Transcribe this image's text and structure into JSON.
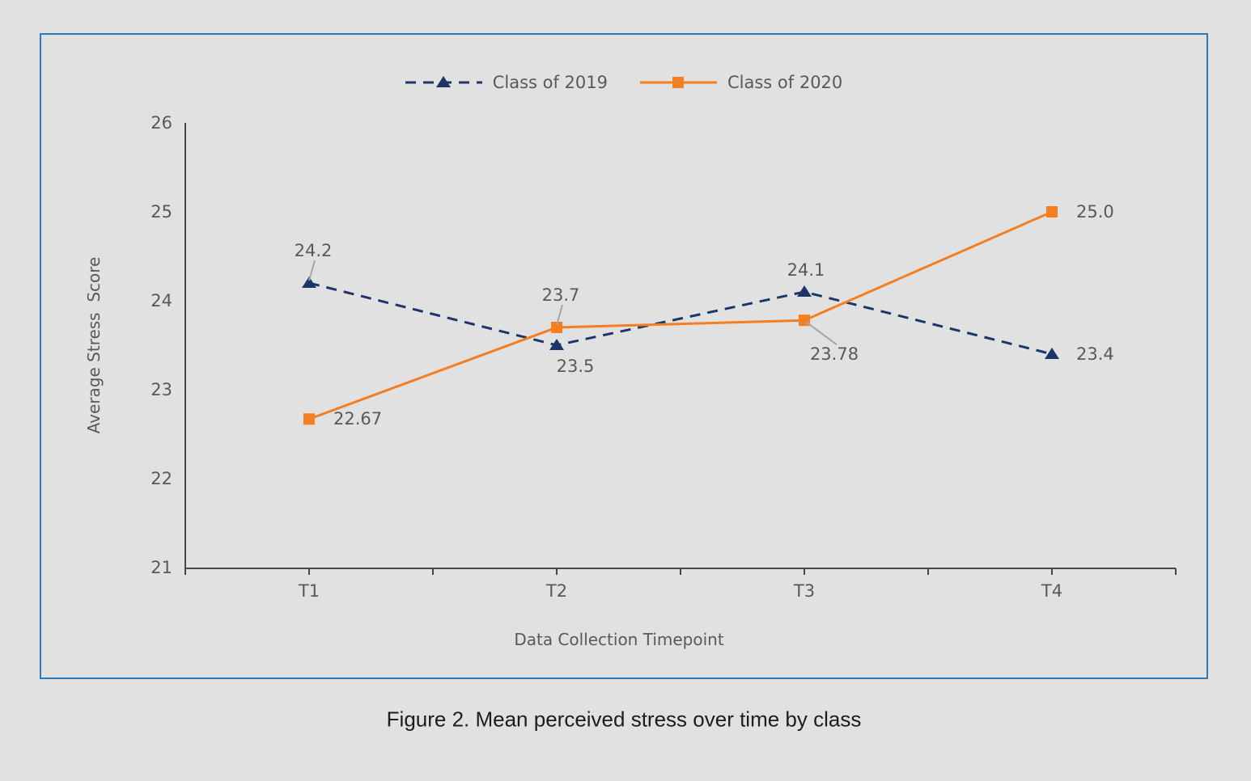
{
  "figure": {
    "caption": "Figure 2. Mean perceived stress over time by class"
  },
  "colors": {
    "background": "#e1e1e1",
    "panel_border": "#2e79b8",
    "axis": "#464646",
    "text_gray": "#595959",
    "leader": "#a6a6a6",
    "caption_text": "#1d1d1d",
    "series_2019": "#1d3667",
    "series_2020": "#f57e20"
  },
  "chart_data": {
    "type": "line",
    "title": "",
    "xlabel": "Data Collection Timepoint",
    "ylabel": "Average Stress  Score",
    "categories": [
      "T1",
      "T2",
      "T3",
      "T4"
    ],
    "y_ticks": [
      "26",
      "25",
      "24",
      "23",
      "22",
      "21"
    ],
    "y_tick_values": [
      26,
      25,
      24,
      23,
      22,
      21
    ],
    "ylim": [
      21,
      26
    ],
    "grid": false,
    "legend_position": "top-center",
    "series": [
      {
        "name": "Class of 2019",
        "values": [
          24.2,
          23.5,
          24.1,
          23.4
        ],
        "labels": [
          "24.2",
          "23.5",
          "24.1",
          "23.4"
        ],
        "color": "#1d3667",
        "line_style": "dashed",
        "marker": "triangle",
        "label_placements": [
          "above-leader",
          "below",
          "above",
          "right"
        ]
      },
      {
        "name": "Class of 2020",
        "values": [
          22.67,
          23.7,
          23.78,
          25.0
        ],
        "labels": [
          "22.67",
          "23.7",
          "23.78",
          "25.0"
        ],
        "color": "#f57e20",
        "line_style": "solid",
        "marker": "square",
        "label_placements": [
          "right",
          "above-leader",
          "below-right-leader",
          "right"
        ]
      }
    ]
  }
}
